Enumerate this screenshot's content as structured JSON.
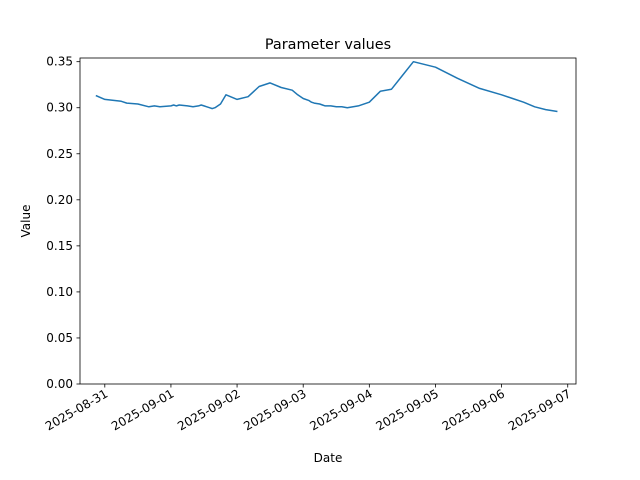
{
  "chart_data": {
    "type": "line",
    "title": "Parameter values",
    "xlabel": "Date",
    "ylabel": "Value",
    "ylim": [
      0,
      0.354
    ],
    "xlim": [
      "2025-08-30T15:00",
      "2025-09-07T03:00"
    ],
    "grid": false,
    "legend": "none",
    "x_ticks": [
      "2025-08-31",
      "2025-09-01",
      "2025-09-02",
      "2025-09-03",
      "2025-09-04",
      "2025-09-05",
      "2025-09-06",
      "2025-09-07"
    ],
    "y_ticks": [
      "0.00",
      "0.05",
      "0.10",
      "0.15",
      "0.20",
      "0.25",
      "0.30",
      "0.35"
    ],
    "series": [
      {
        "color": "#1f77b4",
        "x": [
          "2025-08-30T21:00",
          "2025-08-31T00:00",
          "2025-08-31T06:00",
          "2025-08-31T08:00",
          "2025-08-31T12:00",
          "2025-08-31T16:00",
          "2025-08-31T18:00",
          "2025-08-31T20:00",
          "2025-09-01T00:00",
          "2025-09-01T01:00",
          "2025-09-01T02:00",
          "2025-09-01T03:00",
          "2025-09-01T06:00",
          "2025-09-01T08:00",
          "2025-09-01T10:00",
          "2025-09-01T11:00",
          "2025-09-01T12:00",
          "2025-09-01T13:00",
          "2025-09-01T14:00",
          "2025-09-01T15:00",
          "2025-09-01T16:00",
          "2025-09-01T18:00",
          "2025-09-01T20:00",
          "2025-09-02T00:00",
          "2025-09-02T04:00",
          "2025-09-02T08:00",
          "2025-09-02T12:00",
          "2025-09-02T16:00",
          "2025-09-02T20:00",
          "2025-09-02T22:00",
          "2025-09-03T00:00",
          "2025-09-03T02:00",
          "2025-09-03T03:00",
          "2025-09-03T04:00",
          "2025-09-03T06:00",
          "2025-09-03T07:00",
          "2025-09-03T08:00",
          "2025-09-03T10:00",
          "2025-09-03T12:00",
          "2025-09-03T14:00",
          "2025-09-03T16:00",
          "2025-09-03T20:00",
          "2025-09-04T00:00",
          "2025-09-04T04:00",
          "2025-09-04T08:00",
          "2025-09-04T12:00",
          "2025-09-04T16:00",
          "2025-09-05T00:00",
          "2025-09-05T08:00",
          "2025-09-05T16:00",
          "2025-09-06T00:00",
          "2025-09-06T04:00",
          "2025-09-06T08:00",
          "2025-09-06T12:00",
          "2025-09-06T16:00",
          "2025-09-06T18:00",
          "2025-09-06T20:00"
        ],
        "y": [
          0.313,
          0.309,
          0.307,
          0.305,
          0.304,
          0.301,
          0.302,
          0.301,
          0.302,
          0.303,
          0.302,
          0.303,
          0.302,
          0.301,
          0.302,
          0.303,
          0.302,
          0.301,
          0.3,
          0.299,
          0.3,
          0.304,
          0.314,
          0.309,
          0.312,
          0.323,
          0.327,
          0.322,
          0.319,
          0.314,
          0.31,
          0.308,
          0.306,
          0.305,
          0.304,
          0.303,
          0.302,
          0.302,
          0.301,
          0.301,
          0.3,
          0.302,
          0.306,
          0.318,
          0.32,
          0.335,
          0.35,
          0.344,
          0.332,
          0.321,
          0.314,
          0.31,
          0.306,
          0.301,
          0.298,
          0.297,
          0.296
        ]
      }
    ]
  }
}
